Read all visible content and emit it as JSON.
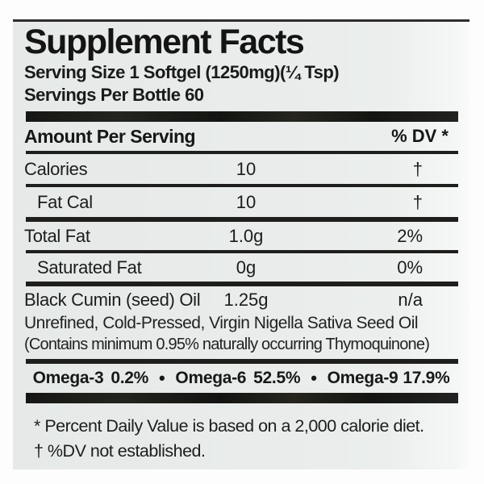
{
  "title": "Supplement Facts",
  "serving": {
    "size_line": "Serving Size 1 Softgel (1250mg)(¼ Tsp)",
    "per_bottle_line": "Servings Per Bottle 60"
  },
  "table": {
    "header_left": "Amount Per Serving",
    "header_right": "% DV *",
    "rows": [
      {
        "name": "Calories",
        "amount": "10",
        "dv": "†"
      },
      {
        "name": "Fat Cal",
        "amount": "10",
        "dv": "†"
      },
      {
        "name": "Total Fat",
        "amount": "1.0g",
        "dv": "2%"
      },
      {
        "name": "Saturated Fat",
        "amount": "0g",
        "dv": "0%"
      },
      {
        "name": "Black Cumin (seed) Oil",
        "amount": "1.25g",
        "dv": "n/a"
      }
    ],
    "ingredient_note_lines": [
      "Unrefined, Cold-Pressed, Virgin Nigella Sativa Seed Oil",
      "(Contains minimum 0.95% naturally occurring Thymoquinone)"
    ]
  },
  "omega": {
    "separator": "•",
    "items": [
      {
        "name": "Omega-3",
        "value": "0.2%"
      },
      {
        "name": "Omega-6",
        "value": "52.5%"
      },
      {
        "name": "Omega-9",
        "value": "17.9%"
      }
    ]
  },
  "footnotes": {
    "daily_value": "* Percent Daily Value is based on a 2,000 calorie diet.",
    "dv_not_established": "† %DV not established."
  },
  "colors": {
    "label_background": "#e9eceb",
    "page_background": "#fdfdfd",
    "rule_color": "#1e1e1c",
    "text_color": "#161616"
  }
}
